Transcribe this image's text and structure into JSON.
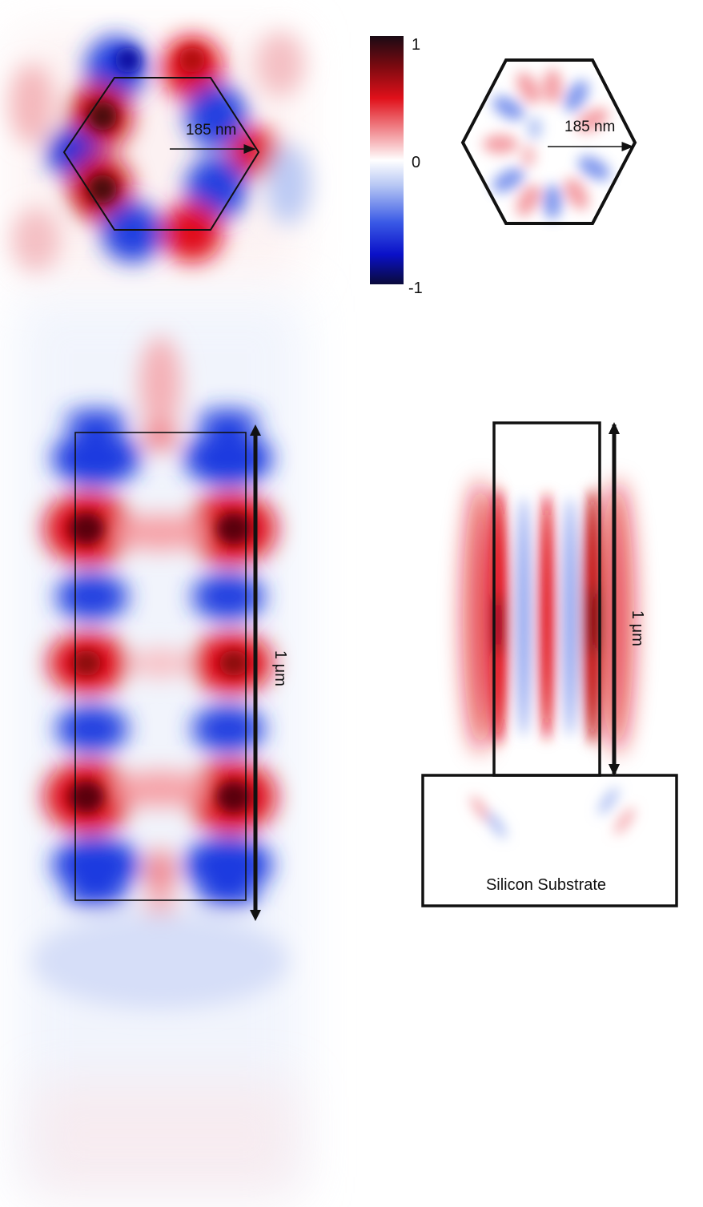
{
  "top_left_panel": {
    "radius_label": "185 nm"
  },
  "top_right_panel": {
    "radius_label": "185 nm"
  },
  "colorbar": {
    "max_label": "1",
    "mid_label": "0",
    "min_label": "-1",
    "colors": {
      "max": "#1a0a14",
      "high": "#e0101a",
      "zero": "#ffffff",
      "low": "#1a3adf",
      "min": "#0a0a3a"
    }
  },
  "bottom_left_panel": {
    "length_label": "1 μm"
  },
  "bottom_right_panel": {
    "length_label": "1 μm",
    "substrate_label": "Silicon Substrate"
  }
}
